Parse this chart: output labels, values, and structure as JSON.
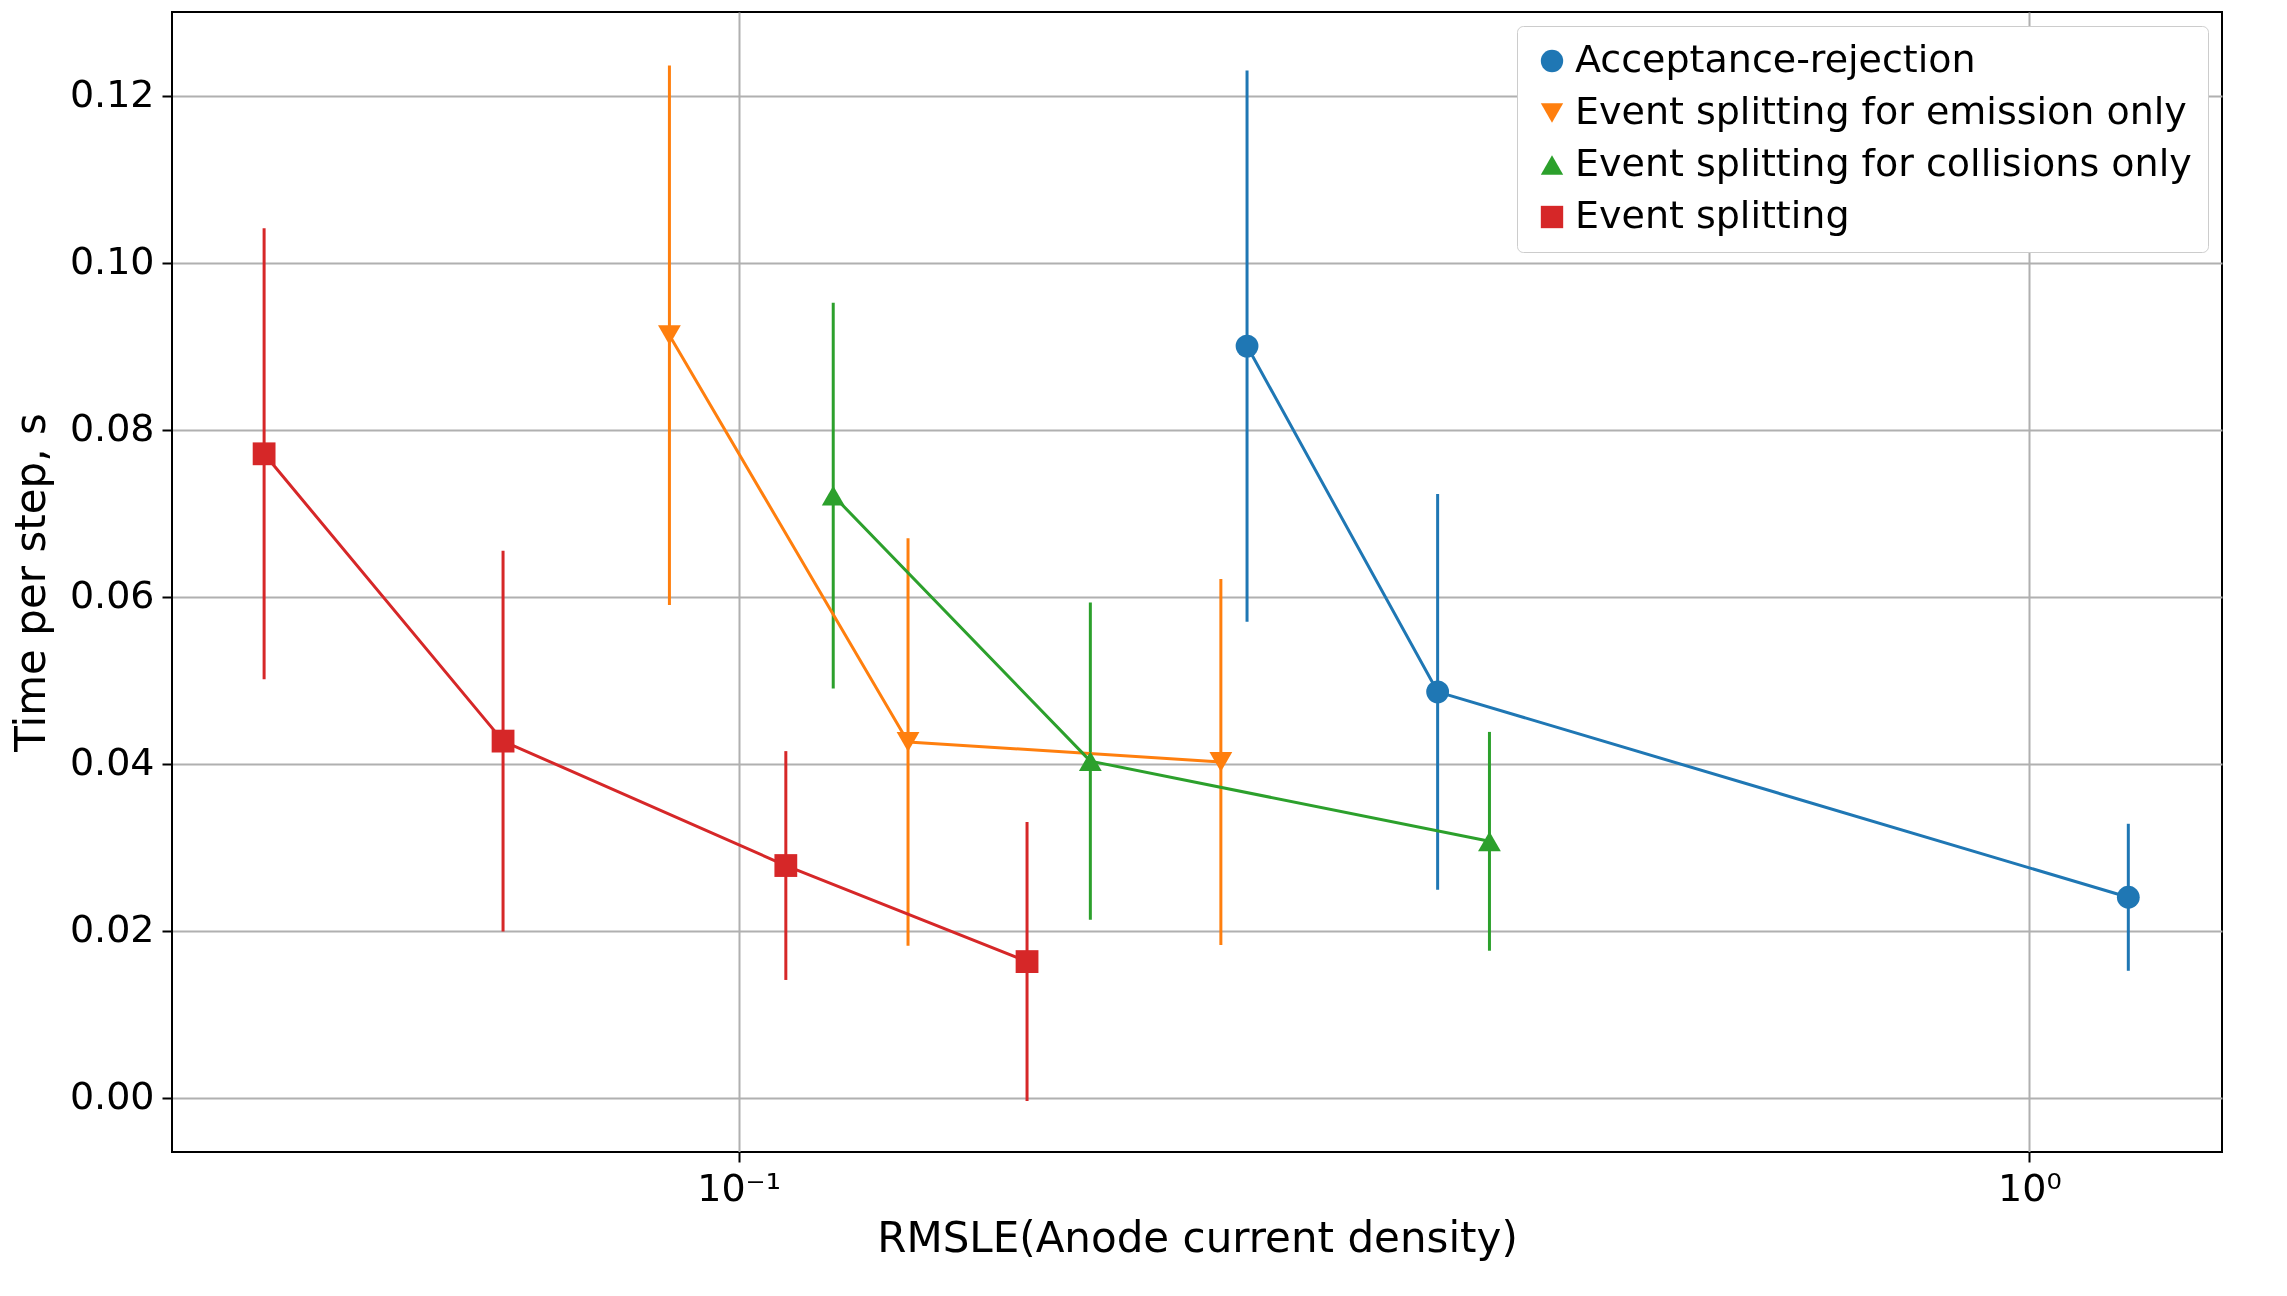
{
  "chart_data": {
    "type": "line",
    "xlabel": "RMSLE(Anode current density)",
    "ylabel": "Time per step, s",
    "log": "x",
    "xlim": [
      0.0364,
      1.41
    ],
    "xticks": [
      {
        "value": 0.1,
        "label": "10⁻¹"
      },
      {
        "value": 1,
        "label": "10⁰"
      }
    ],
    "ylim": [
      -0.0065,
      0.13
    ],
    "yticks": [
      {
        "value": 0,
        "label": "0.00"
      },
      {
        "value": 0.02,
        "label": "0.02"
      },
      {
        "value": 0.04,
        "label": "0.04"
      },
      {
        "value": 0.06,
        "label": "0.06"
      },
      {
        "value": 0.08,
        "label": "0.08"
      },
      {
        "value": 0.1,
        "label": "0.10"
      },
      {
        "value": 0.12,
        "label": "0.12"
      }
    ],
    "grid": true,
    "legend": "top right",
    "series": [
      {
        "name": "Acceptance-rejection",
        "color": "#1f77b4",
        "marker": "circle",
        "x": [
          0.2477,
          0.348,
          1.193
        ],
        "values": [
          0.09,
          0.0486,
          0.024
        ],
        "errors": [
          0.033,
          0.0237,
          0.0088
        ]
      },
      {
        "name": "Event splitting for emission only",
        "color": "#ff7f0e",
        "marker": "triangle-down",
        "x": [
          0.0884,
          0.1353,
          0.2364
        ],
        "values": [
          0.0913,
          0.0426,
          0.0402
        ],
        "errors": [
          0.0323,
          0.0244,
          0.0219
        ]
      },
      {
        "name": "Event splitting for collisions only",
        "color": "#2ca02c",
        "marker": "triangle",
        "x": [
          0.1184,
          0.1873,
          0.3817
        ],
        "values": [
          0.0721,
          0.0403,
          0.0307
        ],
        "errors": [
          0.0231,
          0.019,
          0.0131
        ]
      },
      {
        "name": "Event splitting",
        "color": "#d62728",
        "marker": "square",
        "x": [
          0.0429,
          0.0657,
          0.1088,
          0.1673
        ],
        "values": [
          0.0771,
          0.0427,
          0.0278,
          0.0163
        ],
        "errors": [
          0.027,
          0.0228,
          0.0137,
          0.0167
        ]
      }
    ]
  }
}
